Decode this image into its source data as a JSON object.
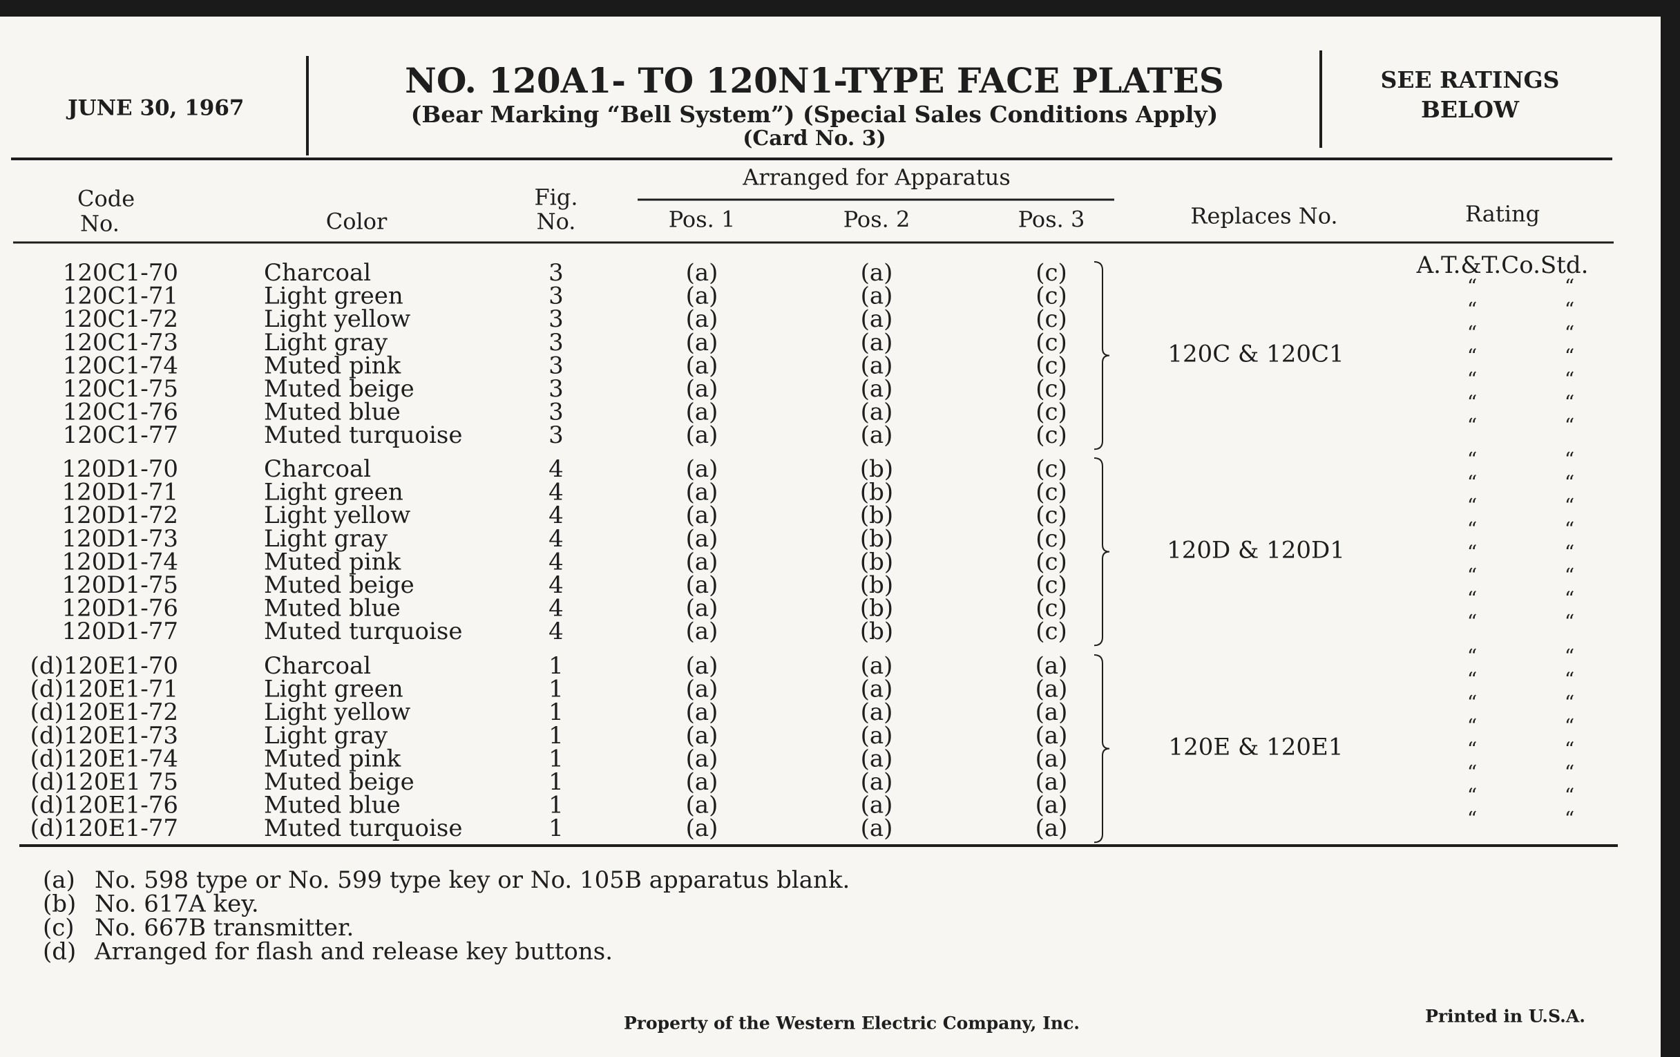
{
  "header": {
    "date": "JUNE 30, 1967",
    "title": "NO. 120A1- TO 120N1-TYPE FACE PLATES",
    "subtitle": "(Bear Marking “Bell System”) (Special Sales Conditions Apply)",
    "card": "(Card No. 3)",
    "ratings_note": [
      "SEE RATINGS",
      "BELOW"
    ]
  },
  "table": {
    "columns": {
      "code": [
        "Code",
        "No."
      ],
      "color": "Color",
      "fig": [
        "Fig.",
        "No."
      ],
      "group": "Arranged for Apparatus",
      "positions": [
        "Pos. 1",
        "Pos. 2",
        "Pos. 3"
      ],
      "replaces": "Replaces No.",
      "rating": "Rating"
    },
    "groups": [
      {
        "replaces": "120C & 120C1",
        "rows": [
          [
            "120C1-70",
            "Charcoal",
            3,
            "(a)",
            "(a)",
            "(c)"
          ],
          [
            "120C1-71",
            "Light green",
            3,
            "(a)",
            "(a)",
            "(c)"
          ],
          [
            "120C1-72",
            "Light yellow",
            3,
            "(a)",
            "(a)",
            "(c)"
          ],
          [
            "120C1-73",
            "Light gray",
            3,
            "(a)",
            "(a)",
            "(c)"
          ],
          [
            "120C1-74",
            "Muted pink",
            3,
            "(a)",
            "(a)",
            "(c)"
          ],
          [
            "120C1-75",
            "Muted beige",
            3,
            "(a)",
            "(a)",
            "(c)"
          ],
          [
            "120C1-76",
            "Muted blue",
            3,
            "(a)",
            "(a)",
            "(c)"
          ],
          [
            "120C1-77",
            "Muted turquoise",
            3,
            "(a)",
            "(a)",
            "(c)"
          ]
        ]
      },
      {
        "replaces": "120D & 120D1",
        "rows": [
          [
            "120D1-70",
            "Charcoal",
            4,
            "(a)",
            "(b)",
            "(c)"
          ],
          [
            "120D1-71",
            "Light green",
            4,
            "(a)",
            "(b)",
            "(c)"
          ],
          [
            "120D1-72",
            "Light yellow",
            4,
            "(a)",
            "(b)",
            "(c)"
          ],
          [
            "120D1-73",
            "Light gray",
            4,
            "(a)",
            "(b)",
            "(c)"
          ],
          [
            "120D1-74",
            "Muted pink",
            4,
            "(a)",
            "(b)",
            "(c)"
          ],
          [
            "120D1-75",
            "Muted beige",
            4,
            "(a)",
            "(b)",
            "(c)"
          ],
          [
            "120D1-76",
            "Muted blue",
            4,
            "(a)",
            "(b)",
            "(c)"
          ],
          [
            "120D1-77",
            "Muted turquoise",
            4,
            "(a)",
            "(b)",
            "(c)"
          ]
        ]
      },
      {
        "replaces": "120E & 120E1",
        "rows": [
          [
            "(d)120E1-70",
            "Charcoal",
            1,
            "(a)",
            "(a)",
            "(a)"
          ],
          [
            "(d)120E1-71",
            "Light green",
            1,
            "(a)",
            "(a)",
            "(a)"
          ],
          [
            "(d)120E1-72",
            "Light yellow",
            1,
            "(a)",
            "(a)",
            "(a)"
          ],
          [
            "(d)120E1-73",
            "Light gray",
            1,
            "(a)",
            "(a)",
            "(a)"
          ],
          [
            "(d)120E1-74",
            "Muted pink",
            1,
            "(a)",
            "(a)",
            "(a)"
          ],
          [
            "(d)120E1 75",
            "Muted beige",
            1,
            "(a)",
            "(a)",
            "(a)"
          ],
          [
            "(d)120E1-76",
            "Muted blue",
            1,
            "(a)",
            "(a)",
            "(a)"
          ],
          [
            "(d)120E1-77",
            "Muted turquoise",
            1,
            "(a)",
            "(a)",
            "(a)"
          ]
        ]
      }
    ],
    "rating_standard": "A.T.&T.Co.Std.",
    "rating_ditto": [
      [
        "“",
        "“"
      ],
      [
        "“",
        "“"
      ],
      [
        "“",
        "“"
      ],
      [
        "“",
        "“"
      ],
      [
        "“",
        "“"
      ],
      [
        "“",
        "“"
      ],
      [
        "“",
        "“"
      ],
      [
        "“",
        "“"
      ],
      [
        "“",
        "“"
      ],
      [
        "“",
        "“"
      ],
      [
        "“",
        "“"
      ],
      [
        "“",
        "“"
      ],
      [
        "“",
        "“"
      ],
      [
        "“",
        "“"
      ],
      [
        "“",
        "“"
      ],
      [
        "“",
        "“"
      ],
      [
        "“",
        "“"
      ],
      [
        "“",
        "“"
      ],
      [
        "“",
        "“"
      ],
      [
        "“",
        "“"
      ],
      [
        "“",
        "“"
      ],
      [
        "“",
        "“"
      ],
      [
        "“",
        "“"
      ]
    ]
  },
  "footnotes": [
    [
      "(a)",
      "No. 598 type or No. 599 type key or No. 105B apparatus blank."
    ],
    [
      "(b)",
      "No. 617A key."
    ],
    [
      "(c)",
      "No. 667B transmitter."
    ],
    [
      "(d)",
      "Arranged for flash and release key buttons."
    ]
  ],
  "footer": {
    "property": "Property of the Western Electric Company, Inc.",
    "printed": "Printed in U.S.A."
  }
}
